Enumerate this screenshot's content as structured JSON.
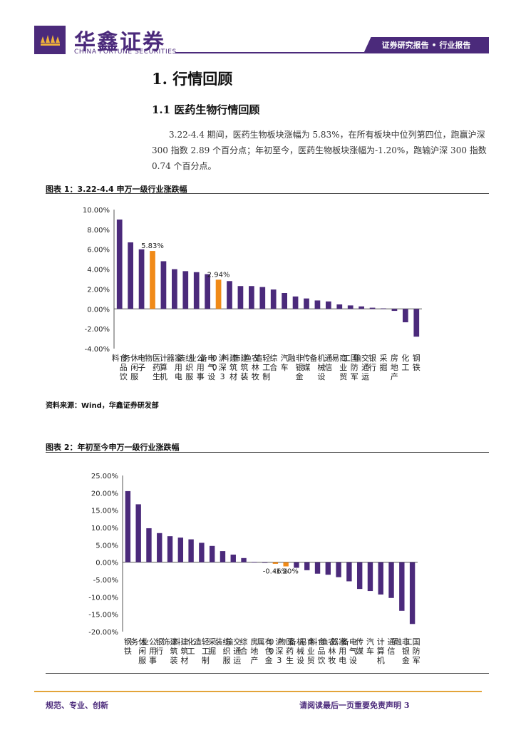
{
  "header": {
    "brand_cn": "华鑫证券",
    "brand_en": "CHINA FORTUNE SECURITIES",
    "tag": "证券研究报告 • 行业报告",
    "logo_icon": "crown-logo-icon"
  },
  "section": {
    "h1": "1. 行情回顾",
    "h2": "1.1 医药生物行情回顾",
    "paragraph": "3.22-4.4 期间，医药生物板块涨幅为 5.83%，在所有板块中位列第四位，跑赢沪深 300 指数 2.89 个百分点；年初至今，医药生物板块涨幅为-1.20%，跑输沪深 300 指数 0.74 个百分点。"
  },
  "figures": {
    "fig1_title": "图表 1：3.22-4.4 申万一级行业涨跌幅",
    "fig2_title": "图表 2：年初至今申万一级行业涨跌幅",
    "source": "资料来源：Wind，华鑫证券研发部"
  },
  "colors": {
    "bar": "#4b2a7b",
    "highlight": "#f08a18",
    "accent": "#4b2a7b",
    "footer_line": "#e3a43a"
  },
  "chart_data": [
    {
      "type": "bar",
      "categories": [
        "食品饮料",
        "休闲服务",
        "电子",
        "医药生物",
        "计算机",
        "家用电器",
        "纺织服装",
        "公用事业",
        "电气设备",
        "沪深300",
        "建筑材料",
        "建筑装饰",
        "农林牧渔",
        "轻工制造",
        "综合",
        "汽车",
        "非银金融",
        "传媒",
        "机械设备",
        "通信",
        "商业贸易",
        "国防军工",
        "交通运输",
        "银行",
        "采掘",
        "房地产",
        "化工",
        "钢铁"
      ],
      "values": [
        9.0,
        6.7,
        6.0,
        5.83,
        4.8,
        4.0,
        3.8,
        3.7,
        3.5,
        2.94,
        2.8,
        2.3,
        2.3,
        2.2,
        1.95,
        1.6,
        1.25,
        1.05,
        0.85,
        0.75,
        0.45,
        0.35,
        0.25,
        0.12,
        0.05,
        -0.2,
        -1.35,
        -2.8
      ],
      "highlight": [
        "医药生物",
        "沪深300"
      ],
      "data_labels": {
        "医药生物": "5.83%",
        "沪深300": "2.94%"
      },
      "yticks": [
        "10.00%",
        "8.00%",
        "6.00%",
        "4.00%",
        "2.00%",
        "0.00%",
        "-2.00%",
        "-4.00%"
      ],
      "ylim": [
        -4,
        10
      ]
    },
    {
      "type": "bar",
      "categories": [
        "钢铁",
        "休闲服务",
        "公用事业",
        "银行",
        "建筑装饰",
        "建筑材料",
        "化工",
        "轻工制造",
        "采掘",
        "纺织服装",
        "交通运输",
        "综合",
        "房地产",
        "有色金属",
        "沪深300",
        "医药生物",
        "机械设备",
        "商业贸易",
        "食品饮料",
        "农林牧渔",
        "家用电器",
        "电气设备",
        "传媒",
        "汽车",
        "计算机",
        "通信",
        "非银金融",
        "国防军工"
      ],
      "values": [
        20.5,
        16.7,
        9.8,
        8.4,
        7.5,
        7.1,
        6.6,
        5.6,
        4.7,
        3.2,
        2.2,
        1.2,
        0.1,
        -0.1,
        -0.46,
        -1.2,
        -1.6,
        -2.3,
        -3.3,
        -3.6,
        -4.3,
        -5.5,
        -7.7,
        -8.3,
        -9.3,
        -10.3,
        -14.0,
        -17.8
      ],
      "highlight": [
        "沪深300",
        "医药生物"
      ],
      "data_labels": {
        "沪深300": "-0.46%",
        "医药生物": "-1.20%"
      },
      "yticks": [
        "25.00%",
        "20.00%",
        "15.00%",
        "10.00%",
        "5.00%",
        "0.00%",
        "-5.00%",
        "-10.00%",
        "-15.00%",
        "-20.00%"
      ],
      "ylim": [
        -20,
        25
      ]
    }
  ],
  "footer": {
    "left": "规范、专业、创新",
    "right": "请阅读最后一页重要免责声明 3"
  }
}
